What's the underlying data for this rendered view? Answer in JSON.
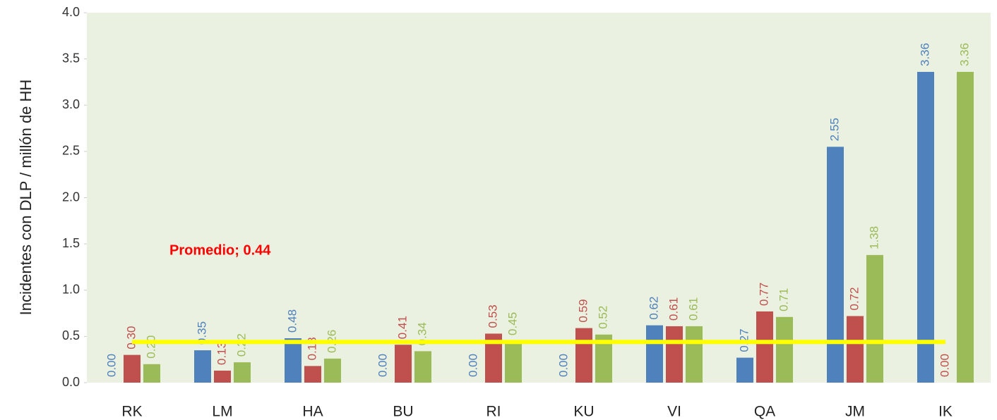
{
  "chart_data": {
    "type": "bar",
    "y_label": "Incidentes con DLP / millón de HH",
    "categories": [
      "RK",
      "LM",
      "HA",
      "BU",
      "RI",
      "KU",
      "VI",
      "QA",
      "JM",
      "IK"
    ],
    "series": [
      {
        "color": "#4f81bd",
        "values": [
          0,
          0.35,
          0.48,
          0,
          0,
          0,
          0.62,
          0.27,
          2.55,
          3.36
        ],
        "value_labels": [
          "0.00",
          "0.35",
          "0.48",
          "0.00",
          "0.00",
          "0.00",
          "0.62",
          "0.27",
          "2.55",
          "3.36"
        ]
      },
      {
        "color": "#c0504d",
        "values": [
          0.3,
          0.13,
          0.18,
          0.41,
          0.53,
          0.59,
          0.61,
          0.77,
          0.72,
          0
        ],
        "value_labels": [
          "0.30",
          "0.13",
          "0.18",
          "0.41",
          "0.53",
          "0.59",
          "0.61",
          "0.77",
          "0.72",
          "0.00"
        ]
      },
      {
        "color": "#9bbb59",
        "values": [
          0.2,
          0.22,
          0.26,
          0.34,
          0.45,
          0.52,
          0.61,
          0.71,
          1.38,
          3.36
        ],
        "value_labels": [
          "0.20",
          "0.22",
          "0.26",
          "0.34",
          "0.45",
          "0.52",
          "0.61",
          "0.71",
          "1.38",
          "3.36"
        ]
      }
    ],
    "average": {
      "value": 0.44,
      "label": "Promedio; 0.44",
      "color": "#ffff00",
      "label_color": "#ff0000"
    },
    "ylim": [
      0,
      4
    ],
    "yticks": [
      {
        "value": 0,
        "label": "0.0"
      },
      0.5,
      {
        "value": 1,
        "label": "1.0"
      },
      1.5,
      {
        "value": 2,
        "label": "2.0"
      },
      2.5,
      {
        "value": 3,
        "label": "3.0"
      },
      3.5,
      {
        "value": 4,
        "label": "4.0"
      }
    ],
    "background": "#ebf1e0"
  }
}
